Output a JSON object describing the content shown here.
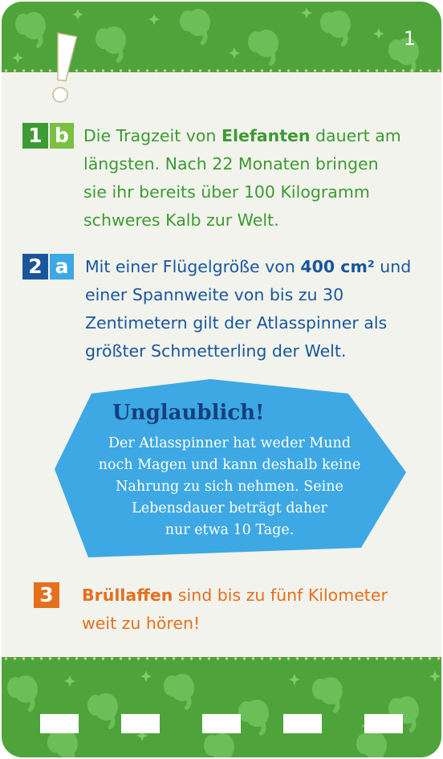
{
  "card": {
    "number": "1",
    "colors": {
      "band": "#4ea43a",
      "background": "#f1f3ec",
      "green": "#3e9a33",
      "blue": "#1a569c",
      "orange": "#e4701f",
      "fact_blue": "#3da8e3"
    },
    "icons": [
      "exclamation-mark-icon",
      "elephant-head-icon",
      "star-icon"
    ]
  },
  "answers": [
    {
      "number": "1",
      "letter": "b",
      "text_before": "Die Tragzeit von ",
      "bold": "Elefanten",
      "text_after": " dauert am längsten. Nach 22 Monaten bringen sie ihr bereits über 100 Kilogramm schweres Kalb zur Welt."
    },
    {
      "number": "2",
      "letter": "a",
      "text_before": "Mit einer Flügelgröße von ",
      "bold": "400 cm²",
      "text_after": " und einer Spannweite von bis zu 30 Zentimetern gilt der Atlasspinner als größter Schmetterling der Welt."
    },
    {
      "number": "3",
      "text_before": "",
      "bold": "Brüllaffen",
      "text_after": " sind bis zu fünf Kilometer weit zu hören!"
    }
  ],
  "fact": {
    "title": "Unglaublich!",
    "lines": [
      "Der Atlasspinner hat weder Mund",
      "noch Magen und kann deshalb keine",
      "Nahrung zu sich nehmen. Seine",
      "Lebensdauer beträgt daher",
      "nur etwa 10 Tage."
    ]
  }
}
